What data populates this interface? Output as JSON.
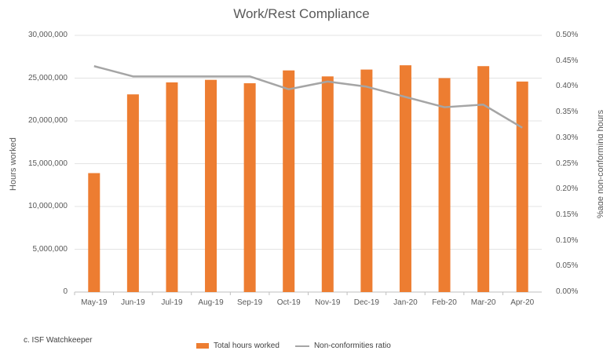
{
  "chart_data": {
    "type": "bar",
    "title": "Work/Rest Compliance",
    "categories": [
      "May-19",
      "Jun-19",
      "Jul-19",
      "Aug-19",
      "Sep-19",
      "Oct-19",
      "Nov-19",
      "Dec-19",
      "Jan-20",
      "Feb-20",
      "Mar-20",
      "Apr-20"
    ],
    "series": [
      {
        "name": "Total hours worked",
        "type": "bar",
        "axis": "left",
        "color": "#ED7D31",
        "values": [
          13900000,
          23100000,
          24500000,
          24800000,
          24400000,
          25900000,
          25200000,
          26000000,
          26500000,
          25000000,
          26400000,
          24600000
        ]
      },
      {
        "name": "Non-conformities ratio",
        "type": "line",
        "axis": "right",
        "color": "#A5A5A5",
        "values": [
          0.44,
          0.42,
          0.42,
          0.42,
          0.42,
          0.395,
          0.41,
          0.4,
          0.38,
          0.36,
          0.365,
          0.32
        ]
      }
    ],
    "ylabel": "Hours worked",
    "ylabel_right": "%age non-conforming hours",
    "ylim": [
      0,
      30000000
    ],
    "ylim_right": [
      0,
      0.5
    ],
    "yticks": [
      "0",
      "5,000,000",
      "10,000,000",
      "15,000,000",
      "20,000,000",
      "25,000,000",
      "30,000,000"
    ],
    "yticks_right": [
      "0.00%",
      "0.05%",
      "0.10%",
      "0.15%",
      "0.20%",
      "0.25%",
      "0.30%",
      "0.35%",
      "0.40%",
      "0.45%",
      "0.50%"
    ],
    "grid": true,
    "legend_position": "bottom"
  },
  "source": "c. ISF Watchkeeper",
  "legend": {
    "bar": "Total hours worked",
    "line": "Non-conformities ratio"
  }
}
